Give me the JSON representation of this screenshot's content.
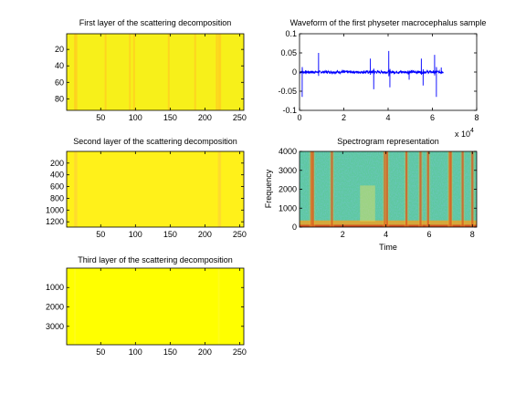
{
  "chart_data": [
    {
      "type": "heatmap",
      "title": "First layer of the scattering decomposition",
      "x_ticks": [
        50,
        100,
        150,
        200,
        250
      ],
      "y_ticks": [
        20,
        40,
        60,
        80
      ],
      "xlim": [
        1,
        256
      ],
      "ylim": [
        1,
        94
      ],
      "y_reversed": true,
      "base_color": "#f7f01a",
      "stripe_color": "#ffcc22",
      "stripe_x": [
        13,
        15,
        57,
        92,
        98,
        148,
        186,
        217,
        220,
        222
      ]
    },
    {
      "type": "heatmap",
      "title": "Second layer of the scattering decomposition",
      "x_ticks": [
        50,
        100,
        150,
        200,
        250
      ],
      "y_ticks": [
        200,
        400,
        600,
        800,
        1000,
        1200
      ],
      "xlim": [
        1,
        256
      ],
      "ylim": [
        1,
        1290
      ],
      "y_reversed": true,
      "base_color": "#fff11a",
      "stripe_color": "#ffd633",
      "stripe_x": [
        13,
        15,
        220,
        222
      ]
    },
    {
      "type": "heatmap",
      "title": "Third layer of the scattering decomposition",
      "x_ticks": [
        50,
        100,
        150,
        200,
        250
      ],
      "y_ticks": [
        1000,
        2000,
        3000
      ],
      "xlim": [
        1,
        256
      ],
      "ylim": [
        1,
        3950
      ],
      "y_reversed": true,
      "base_color": "#ffff00",
      "stripe_color": "#fffb22",
      "stripe_x": [
        13,
        220
      ]
    },
    {
      "type": "line",
      "title": "Waveform of the first physeter macrocephalus sample",
      "x_ticks": [
        "0",
        "2",
        "4",
        "6",
        "8"
      ],
      "y_ticks": [
        "-0.1",
        "-0.05",
        "0",
        "0.05",
        "0.1"
      ],
      "xlim": [
        0,
        80000
      ],
      "ylim": [
        -0.1,
        0.1
      ],
      "x_exponent": "x 10",
      "x_exponent_power": "4",
      "line_color": "#0000ff",
      "signal_length": 65000,
      "clicks": [
        {
          "x": 1200,
          "amp": -0.065
        },
        {
          "x": 8600,
          "amp": 0.05
        },
        {
          "x": 32000,
          "amp": 0.035
        },
        {
          "x": 33500,
          "amp": -0.045
        },
        {
          "x": 40300,
          "amp": 0.055
        },
        {
          "x": 40800,
          "amp": -0.04
        },
        {
          "x": 49500,
          "amp": -0.02
        },
        {
          "x": 55000,
          "amp": 0.035
        },
        {
          "x": 55800,
          "amp": -0.035
        },
        {
          "x": 61000,
          "amp": 0.045
        },
        {
          "x": 61800,
          "amp": -0.065
        },
        {
          "x": 64000,
          "amp": 0.012
        }
      ]
    },
    {
      "type": "heatmap",
      "title": "Spectrogram representation",
      "xlabel": "Time",
      "ylabel": "Frequency",
      "x_ticks": [
        "2",
        "4",
        "6",
        "8"
      ],
      "y_ticks": [
        "0",
        "1000",
        "2000",
        "3000",
        "4000"
      ],
      "xlim": [
        0,
        8.2
      ],
      "ylim": [
        0,
        4000
      ],
      "base_color": "#5ec8a0",
      "low_band_color": "#f0a020",
      "stripe_color": "#d23a1a",
      "stripe_x": [
        0.55,
        0.62,
        1.5,
        3.95,
        4.05,
        4.95,
        5.6,
        5.95,
        6.95,
        7.0,
        7.55,
        8.0
      ],
      "mid_patch_x": [
        2.8,
        3.5
      ]
    }
  ]
}
